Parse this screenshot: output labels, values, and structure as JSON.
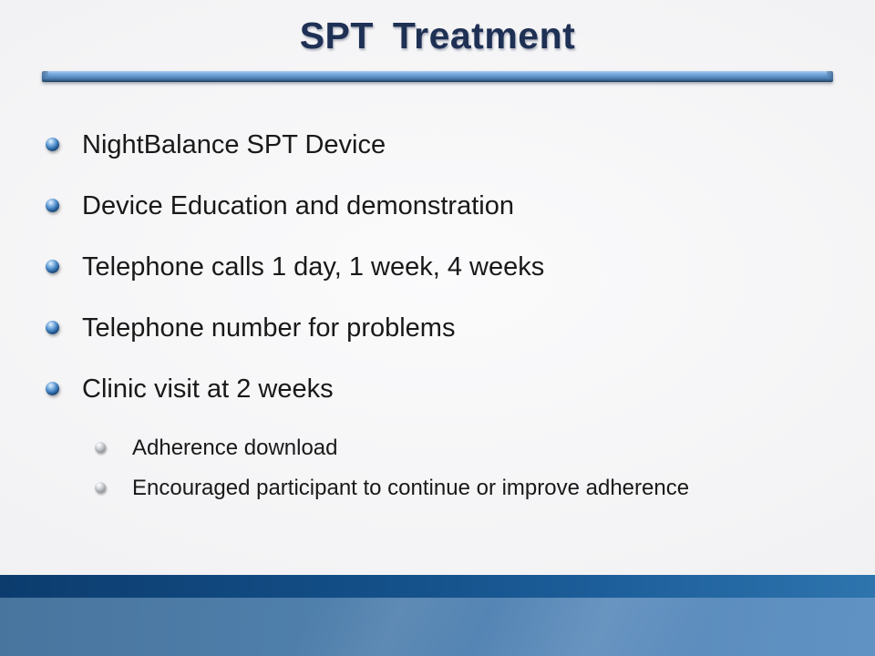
{
  "slide": {
    "title": "SPT Treatment",
    "bullets": [
      {
        "level": 1,
        "text": "NightBalance SPT Device"
      },
      {
        "level": 1,
        "text": "Device Education and demonstration"
      },
      {
        "level": 1,
        "text": "Telephone calls 1 day, 1 week, 4 weeks"
      },
      {
        "level": 1,
        "text": "Telephone number for problems"
      },
      {
        "level": 1,
        "text": "Clinic visit at 2 weeks"
      },
      {
        "level": 2,
        "text": "Adherence download"
      },
      {
        "level": 2,
        "text": "Encouraged participant to continue or improve adherence"
      }
    ],
    "colors": {
      "title_text": "#1e3054",
      "body_text": "#191919",
      "divider_highlight": "#aecff1",
      "divider_mid": "#6497cd",
      "divider_shadow": "#1d3c5c",
      "bullet_blue": "#1e5187",
      "bullet_silver": "#b2b6bb",
      "footer_band_dark_left": "#0c3c6e",
      "footer_band_dark_right": "#2e74ad",
      "footer_area_left": "#48759e",
      "footer_area_right": "#6093c4",
      "background": "#f2f2f4"
    }
  }
}
